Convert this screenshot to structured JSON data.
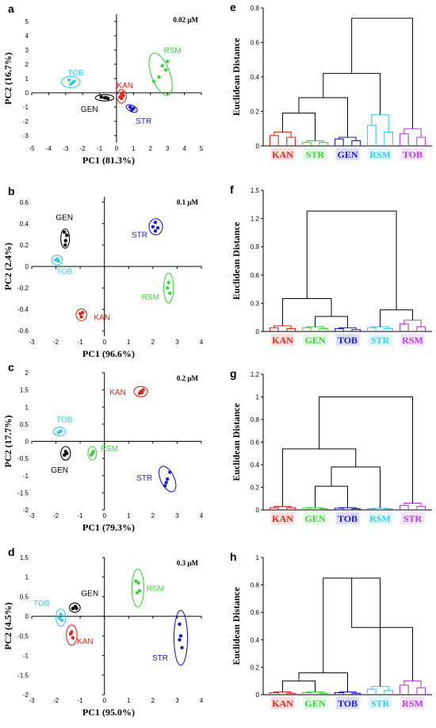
{
  "colors": {
    "KAN": "#d42a1e",
    "STR": "#1a1acc",
    "GEN": "#000000",
    "RSM": "#3fd03f",
    "TOB": "#3cc8e8",
    "PURPLE": "#b040d8"
  },
  "chart_data": [
    {
      "panel": "a",
      "type": "scatter",
      "concentration": "0.02 μM",
      "xlabel": "PC1 (81.3%)",
      "ylabel": "PC2 (16.7%)",
      "xlim": [
        -5,
        5
      ],
      "ylim": [
        -3.5,
        5.5
      ],
      "xticks": [
        -5,
        -4,
        -3,
        -2,
        -1,
        0,
        1,
        2,
        3,
        4,
        5
      ],
      "yticks": [
        -3,
        -2,
        -1,
        0,
        1,
        2,
        3,
        4,
        5
      ],
      "groups": [
        {
          "name": "TOB",
          "color": "TOB",
          "points": [
            [
              -2.8,
              0.9
            ],
            [
              -2.6,
              0.7
            ],
            [
              -2.7,
              0.6
            ],
            [
              -2.5,
              0.8
            ]
          ],
          "ellipse": {
            "cx": -2.7,
            "cy": 0.75,
            "rx": 0.55,
            "ry": 0.4,
            "angle": 0
          },
          "label_at": [
            -2.4,
            1.45
          ]
        },
        {
          "name": "GEN",
          "color": "GEN",
          "points": [
            [
              -0.9,
              -0.3
            ],
            [
              -0.6,
              -0.35
            ],
            [
              -0.5,
              -0.4
            ],
            [
              -0.7,
              -0.35
            ]
          ],
          "ellipse": {
            "cx": -0.7,
            "cy": -0.35,
            "rx": 0.55,
            "ry": 0.22,
            "angle": 0
          },
          "label_at": [
            -1.6,
            -1.1
          ]
        },
        {
          "name": "KAN",
          "color": "KAN",
          "points": [
            [
              0.3,
              -0.1
            ],
            [
              0.3,
              -0.4
            ],
            [
              0.4,
              -0.2
            ],
            [
              0.2,
              -0.3
            ],
            [
              0.35,
              0.0
            ]
          ],
          "ellipse": {
            "cx": 0.3,
            "cy": -0.25,
            "rx": 0.28,
            "ry": 0.48,
            "angle": 0
          },
          "label_at": [
            0.5,
            0.55
          ]
        },
        {
          "name": "STR",
          "color": "STR",
          "points": [
            [
              0.8,
              -1.0
            ],
            [
              0.9,
              -1.2
            ],
            [
              1.0,
              -1.1
            ]
          ],
          "ellipse": {
            "cx": 0.9,
            "cy": -1.1,
            "rx": 0.35,
            "ry": 0.22,
            "angle": -25
          },
          "label_at": [
            1.6,
            -1.95
          ]
        },
        {
          "name": "RSM",
          "color": "RSM",
          "points": [
            [
              2.2,
              0.8
            ],
            [
              2.9,
              1.6
            ],
            [
              2.5,
              1.1
            ],
            [
              3.0,
              2.2
            ],
            [
              2.7,
              1.9
            ]
          ],
          "ellipse": {
            "cx": 2.6,
            "cy": 1.3,
            "rx": 0.55,
            "ry": 1.55,
            "angle": 20
          },
          "label_at": [
            3.3,
            3.0
          ]
        }
      ]
    },
    {
      "panel": "b",
      "type": "scatter",
      "concentration": "0.1 μM",
      "xlabel": "PC1 (96.6%)",
      "ylabel": "PC2 (2.4%)",
      "xlim": [
        -3,
        4
      ],
      "ylim": [
        -0.65,
        0.65
      ],
      "xticks": [
        -3,
        -2,
        -1,
        0,
        1,
        2,
        3,
        4
      ],
      "yticks": [
        -0.6,
        -0.4,
        -0.2,
        0.0,
        0.2,
        0.4,
        0.6
      ],
      "groups": [
        {
          "name": "GEN",
          "color": "GEN",
          "points": [
            [
              -1.65,
              0.32
            ],
            [
              -1.6,
              0.24
            ],
            [
              -1.55,
              0.29
            ],
            [
              -1.62,
              0.2
            ]
          ],
          "ellipse": {
            "cx": -1.62,
            "cy": 0.26,
            "rx": 0.18,
            "ry": 0.09,
            "angle": 0
          },
          "label_at": [
            -1.65,
            0.46
          ]
        },
        {
          "name": "TOB",
          "color": "TOB",
          "points": [
            [
              -2.0,
              0.06
            ],
            [
              -1.9,
              0.05
            ],
            [
              -1.95,
              0.07
            ]
          ],
          "ellipse": {
            "cx": -1.95,
            "cy": 0.06,
            "rx": 0.22,
            "ry": 0.045,
            "angle": 0
          },
          "label_at": [
            -1.65,
            -0.04
          ]
        },
        {
          "name": "KAN",
          "color": "KAN",
          "points": [
            [
              -1.0,
              -0.44
            ],
            [
              -0.95,
              -0.47
            ],
            [
              -0.9,
              -0.43
            ]
          ],
          "ellipse": {
            "cx": -0.95,
            "cy": -0.45,
            "rx": 0.22,
            "ry": 0.055,
            "angle": 0
          },
          "label_at": [
            -0.1,
            -0.47
          ]
        },
        {
          "name": "STR",
          "color": "STR",
          "points": [
            [
              2.0,
              0.37
            ],
            [
              2.1,
              0.41
            ],
            [
              2.2,
              0.36
            ],
            [
              2.1,
              0.33
            ]
          ],
          "ellipse": {
            "cx": 2.12,
            "cy": 0.37,
            "rx": 0.28,
            "ry": 0.075,
            "angle": 0
          },
          "label_at": [
            1.45,
            0.3
          ]
        },
        {
          "name": "RSM",
          "color": "RSM",
          "points": [
            [
              2.6,
              -0.2
            ],
            [
              2.7,
              -0.25
            ],
            [
              2.65,
              -0.15
            ]
          ],
          "ellipse": {
            "cx": 2.65,
            "cy": -0.2,
            "rx": 0.2,
            "ry": 0.14,
            "angle": 0
          },
          "label_at": [
            1.9,
            -0.28
          ]
        }
      ]
    },
    {
      "panel": "c",
      "type": "scatter",
      "concentration": "0.2 μM",
      "xlabel": "PC1 (79.3%)",
      "ylabel": "PC2 (17.7%)",
      "xlim": [
        -3,
        4
      ],
      "ylim": [
        -2.0,
        2.0
      ],
      "xticks": [
        -3,
        -2,
        -1,
        0,
        1,
        2,
        3,
        4
      ],
      "yticks": [
        -2.0,
        -1.5,
        -1.0,
        -0.5,
        0.0,
        0.5,
        1.0,
        1.5,
        2.0
      ],
      "groups": [
        {
          "name": "KAN",
          "color": "KAN",
          "points": [
            [
              1.45,
              1.4
            ],
            [
              1.5,
              1.45
            ],
            [
              1.6,
              1.5
            ],
            [
              1.55,
              1.42
            ]
          ],
          "ellipse": {
            "cx": 1.5,
            "cy": 1.45,
            "rx": 0.28,
            "ry": 0.15,
            "angle": 0
          },
          "label_at": [
            0.55,
            1.45
          ]
        },
        {
          "name": "TOB",
          "color": "TOB",
          "points": [
            [
              -1.9,
              0.25
            ],
            [
              -1.8,
              0.3
            ],
            [
              -1.85,
              0.28
            ]
          ],
          "ellipse": {
            "cx": -1.85,
            "cy": 0.28,
            "rx": 0.25,
            "ry": 0.13,
            "angle": 0
          },
          "label_at": [
            -1.65,
            0.65
          ]
        },
        {
          "name": "GEN",
          "color": "GEN",
          "points": [
            [
              -1.65,
              -0.4
            ],
            [
              -1.6,
              -0.3
            ],
            [
              -1.55,
              -0.35
            ]
          ],
          "ellipse": {
            "cx": -1.6,
            "cy": -0.35,
            "rx": 0.2,
            "ry": 0.2,
            "angle": 0
          },
          "label_at": [
            -1.85,
            -0.82
          ]
        },
        {
          "name": "RSM",
          "color": "RSM",
          "points": [
            [
              -0.55,
              -0.4
            ],
            [
              -0.5,
              -0.35
            ],
            [
              -0.45,
              -0.3
            ]
          ],
          "ellipse": {
            "cx": -0.5,
            "cy": -0.35,
            "rx": 0.18,
            "ry": 0.2,
            "angle": 0
          },
          "label_at": [
            0.2,
            -0.2
          ]
        },
        {
          "name": "STR",
          "color": "STR",
          "points": [
            [
              2.5,
              -1.3
            ],
            [
              2.6,
              -1.1
            ],
            [
              2.7,
              -0.9
            ],
            [
              2.55,
              -1.2
            ]
          ],
          "ellipse": {
            "cx": 2.6,
            "cy": -1.1,
            "rx": 0.28,
            "ry": 0.4,
            "angle": 25
          },
          "label_at": [
            1.65,
            -1.05
          ]
        }
      ]
    },
    {
      "panel": "d",
      "type": "scatter",
      "concentration": "0.3 μM",
      "xlabel": "PC1 (95.0%)",
      "ylabel": "PC2 (4.5%)",
      "xlim": [
        -3,
        4
      ],
      "ylim": [
        -2.0,
        1.5
      ],
      "xticks": [
        -3,
        -2,
        -1,
        0,
        1,
        2,
        3,
        4
      ],
      "yticks": [
        -2.0,
        -1.5,
        -1.0,
        -0.5,
        0.0,
        0.5,
        1.0,
        1.5
      ],
      "groups": [
        {
          "name": "GEN",
          "color": "GEN",
          "points": [
            [
              -1.3,
              0.2
            ],
            [
              -1.2,
              0.25
            ],
            [
              -1.15,
              0.2
            ]
          ],
          "ellipse": {
            "cx": -1.22,
            "cy": 0.22,
            "rx": 0.22,
            "ry": 0.12,
            "angle": 0
          },
          "label_at": [
            -0.6,
            0.6
          ]
        },
        {
          "name": "TOB",
          "color": "TOB",
          "points": [
            [
              -1.85,
              -0.05
            ],
            [
              -1.8,
              0.05
            ],
            [
              -1.75,
              -0.1
            ]
          ],
          "ellipse": {
            "cx": -1.8,
            "cy": -0.03,
            "rx": 0.2,
            "ry": 0.22,
            "angle": 0
          },
          "label_at": [
            -2.6,
            0.35
          ]
        },
        {
          "name": "KAN",
          "color": "KAN",
          "points": [
            [
              -1.4,
              -0.45
            ],
            [
              -1.3,
              -0.55
            ],
            [
              -1.35,
              -0.4
            ]
          ],
          "ellipse": {
            "cx": -1.35,
            "cy": -0.48,
            "rx": 0.22,
            "ry": 0.26,
            "angle": 0
          },
          "label_at": [
            -0.8,
            -0.62
          ]
        },
        {
          "name": "RSM",
          "color": "RSM",
          "points": [
            [
              1.3,
              0.9
            ],
            [
              1.35,
              0.6
            ],
            [
              1.45,
              0.65
            ],
            [
              1.4,
              0.85
            ]
          ],
          "ellipse": {
            "cx": 1.38,
            "cy": 0.72,
            "rx": 0.25,
            "ry": 0.48,
            "angle": 0
          },
          "label_at": [
            2.1,
            0.72
          ]
        },
        {
          "name": "STR",
          "color": "STR",
          "points": [
            [
              3.1,
              -0.2
            ],
            [
              3.15,
              -0.5
            ],
            [
              3.2,
              -0.8
            ],
            [
              3.1,
              -0.6
            ]
          ],
          "ellipse": {
            "cx": 3.15,
            "cy": -0.55,
            "rx": 0.28,
            "ry": 0.7,
            "angle": 0
          },
          "label_at": [
            2.3,
            -1.05
          ]
        }
      ]
    },
    {
      "panel": "e",
      "type": "dendrogram",
      "ylabel": "Euclidean Distance",
      "ylim": [
        0,
        0.8
      ],
      "yticks": [
        0.0,
        0.2,
        0.4,
        0.6,
        0.8
      ],
      "leaves": [
        {
          "name": "KAN",
          "color": "KAN",
          "inner": [
            0.08,
            0.06,
            0.05
          ]
        },
        {
          "name": "STR",
          "color": "RSM",
          "inner": [
            0.03,
            0.02,
            0.02
          ]
        },
        {
          "name": "GEN",
          "color": "STR",
          "inner": [
            0.05,
            0.04,
            0.03
          ]
        },
        {
          "name": "RSM",
          "color": "TOB",
          "inner": [
            0.18,
            0.12,
            0.08
          ]
        },
        {
          "name": "TOB",
          "color": "PURPLE",
          "inner": [
            0.1,
            0.07,
            0.05
          ]
        }
      ],
      "merges": [
        {
          "a": 0,
          "b": 1,
          "h": 0.19
        },
        {
          "a": 5,
          "b": 2,
          "h": 0.28
        },
        {
          "a": 6,
          "b": 3,
          "h": 0.42
        },
        {
          "a": 7,
          "b": 4,
          "h": 0.74
        }
      ]
    },
    {
      "panel": "f",
      "type": "dendrogram",
      "ylabel": "Euclidean Distance",
      "ylim": [
        0,
        1.5
      ],
      "yticks": [
        0.0,
        0.3,
        0.6,
        0.9,
        1.2,
        1.5
      ],
      "leaves": [
        {
          "name": "KAN",
          "color": "KAN",
          "inner": [
            0.06,
            0.04,
            0.03
          ]
        },
        {
          "name": "GEN",
          "color": "RSM",
          "inner": [
            0.05,
            0.04,
            0.03
          ]
        },
        {
          "name": "TOB",
          "color": "STR",
          "inner": [
            0.04,
            0.03,
            0.02
          ]
        },
        {
          "name": "STR",
          "color": "TOB",
          "inner": [
            0.05,
            0.04,
            0.03
          ]
        },
        {
          "name": "RSM",
          "color": "PURPLE",
          "inner": [
            0.12,
            0.08,
            0.05
          ]
        }
      ],
      "merges": [
        {
          "a": 1,
          "b": 2,
          "h": 0.16
        },
        {
          "a": 0,
          "b": 5,
          "h": 0.35
        },
        {
          "a": 3,
          "b": 4,
          "h": 0.23
        },
        {
          "a": 6,
          "b": 7,
          "h": 1.28
        }
      ]
    },
    {
      "panel": "g",
      "type": "dendrogram",
      "ylabel": "Euclidean Distance",
      "ylim": [
        0,
        1.2
      ],
      "yticks": [
        0.0,
        0.2,
        0.4,
        0.6,
        0.8,
        1.0,
        1.2
      ],
      "leaves": [
        {
          "name": "KAN",
          "color": "KAN",
          "inner": [
            0.03,
            0.02,
            0.02
          ]
        },
        {
          "name": "GEN",
          "color": "RSM",
          "inner": [
            0.02,
            0.015,
            0.01
          ]
        },
        {
          "name": "TOB",
          "color": "STR",
          "inner": [
            0.02,
            0.015,
            0.01
          ]
        },
        {
          "name": "RSM",
          "color": "TOB",
          "inner": [
            0.015,
            0.01,
            0.01
          ]
        },
        {
          "name": "STR",
          "color": "PURPLE",
          "inner": [
            0.06,
            0.04,
            0.03
          ]
        }
      ],
      "merges": [
        {
          "a": 1,
          "b": 2,
          "h": 0.21
        },
        {
          "a": 5,
          "b": 3,
          "h": 0.38
        },
        {
          "a": 0,
          "b": 6,
          "h": 0.54
        },
        {
          "a": 7,
          "b": 4,
          "h": 1.0
        }
      ]
    },
    {
      "panel": "h",
      "type": "dendrogram",
      "ylabel": "Euclidean Distance",
      "ylim": [
        0,
        1.0
      ],
      "yticks": [
        0.0,
        0.2,
        0.4,
        0.6,
        0.8,
        1.0
      ],
      "leaves": [
        {
          "name": "KAN",
          "color": "KAN",
          "inner": [
            0.02,
            0.015,
            0.01
          ]
        },
        {
          "name": "GEN",
          "color": "RSM",
          "inner": [
            0.02,
            0.015,
            0.01
          ]
        },
        {
          "name": "TOB",
          "color": "STR",
          "inner": [
            0.02,
            0.015,
            0.01
          ]
        },
        {
          "name": "STR",
          "color": "TOB",
          "inner": [
            0.06,
            0.04,
            0.03
          ]
        },
        {
          "name": "RSM",
          "color": "PURPLE",
          "inner": [
            0.1,
            0.07,
            0.05
          ]
        }
      ],
      "merges": [
        {
          "a": 0,
          "b": 1,
          "h": 0.1
        },
        {
          "a": 5,
          "b": 2,
          "h": 0.16
        },
        {
          "a": 6,
          "b": 3,
          "h": 0.85
        },
        {
          "a": 7,
          "b": 4,
          "h": 0.49
        }
      ]
    }
  ]
}
